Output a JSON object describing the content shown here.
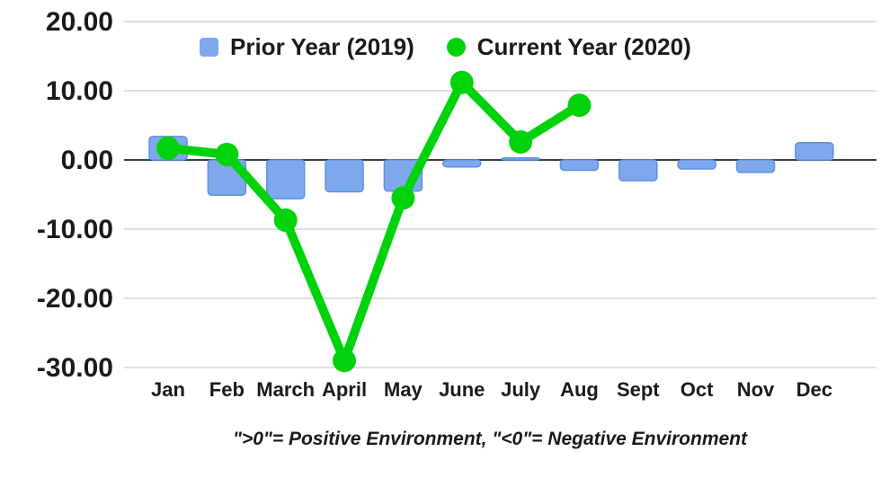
{
  "chart_data": {
    "type": "combo",
    "title": "",
    "categories": [
      "Jan",
      "Feb",
      "March",
      "April",
      "May",
      "June",
      "July",
      "Aug",
      "Sept",
      "Oct",
      "Nov",
      "Dec"
    ],
    "series": [
      {
        "name": "Prior Year (2019)",
        "type": "bar",
        "color": "#7da8ec",
        "values": [
          3.4,
          -5.1,
          -5.6,
          -4.6,
          -4.5,
          -1.0,
          0.3,
          -1.5,
          -3.0,
          -1.3,
          -1.8,
          2.5
        ]
      },
      {
        "name": "Current Year (2020)",
        "type": "line",
        "color": "#00d30b",
        "values": [
          1.7,
          0.8,
          -8.7,
          -29.0,
          -5.5,
          11.2,
          2.6,
          7.9,
          null,
          null,
          null,
          null
        ]
      }
    ],
    "ylim": [
      -30,
      20
    ],
    "y_ticks": [
      20,
      10,
      0,
      -10,
      -20,
      -30
    ],
    "y_tick_labels": [
      "20.00",
      "10.00",
      "0.00",
      "-10.00",
      "-20.00",
      "-30.00"
    ],
    "grid": true,
    "legend_position": "top",
    "caption": "\">0\"= Positive Environment, \"<0\"= Negative Environment"
  },
  "legend": {
    "items": [
      {
        "label": "Prior Year (2019)",
        "swatch": "square",
        "color": "#7da8ec"
      },
      {
        "label": "Current Year (2020)",
        "swatch": "circle",
        "color": "#00d30b"
      }
    ]
  },
  "colors": {
    "bar_fill": "#7da8ec",
    "bar_border": "#5f90e0",
    "line": "#00d30b",
    "grid": "#cccccc",
    "zero_axis": "#3d3d3d",
    "text": "#1a1a1a",
    "background": "#ffffff"
  }
}
